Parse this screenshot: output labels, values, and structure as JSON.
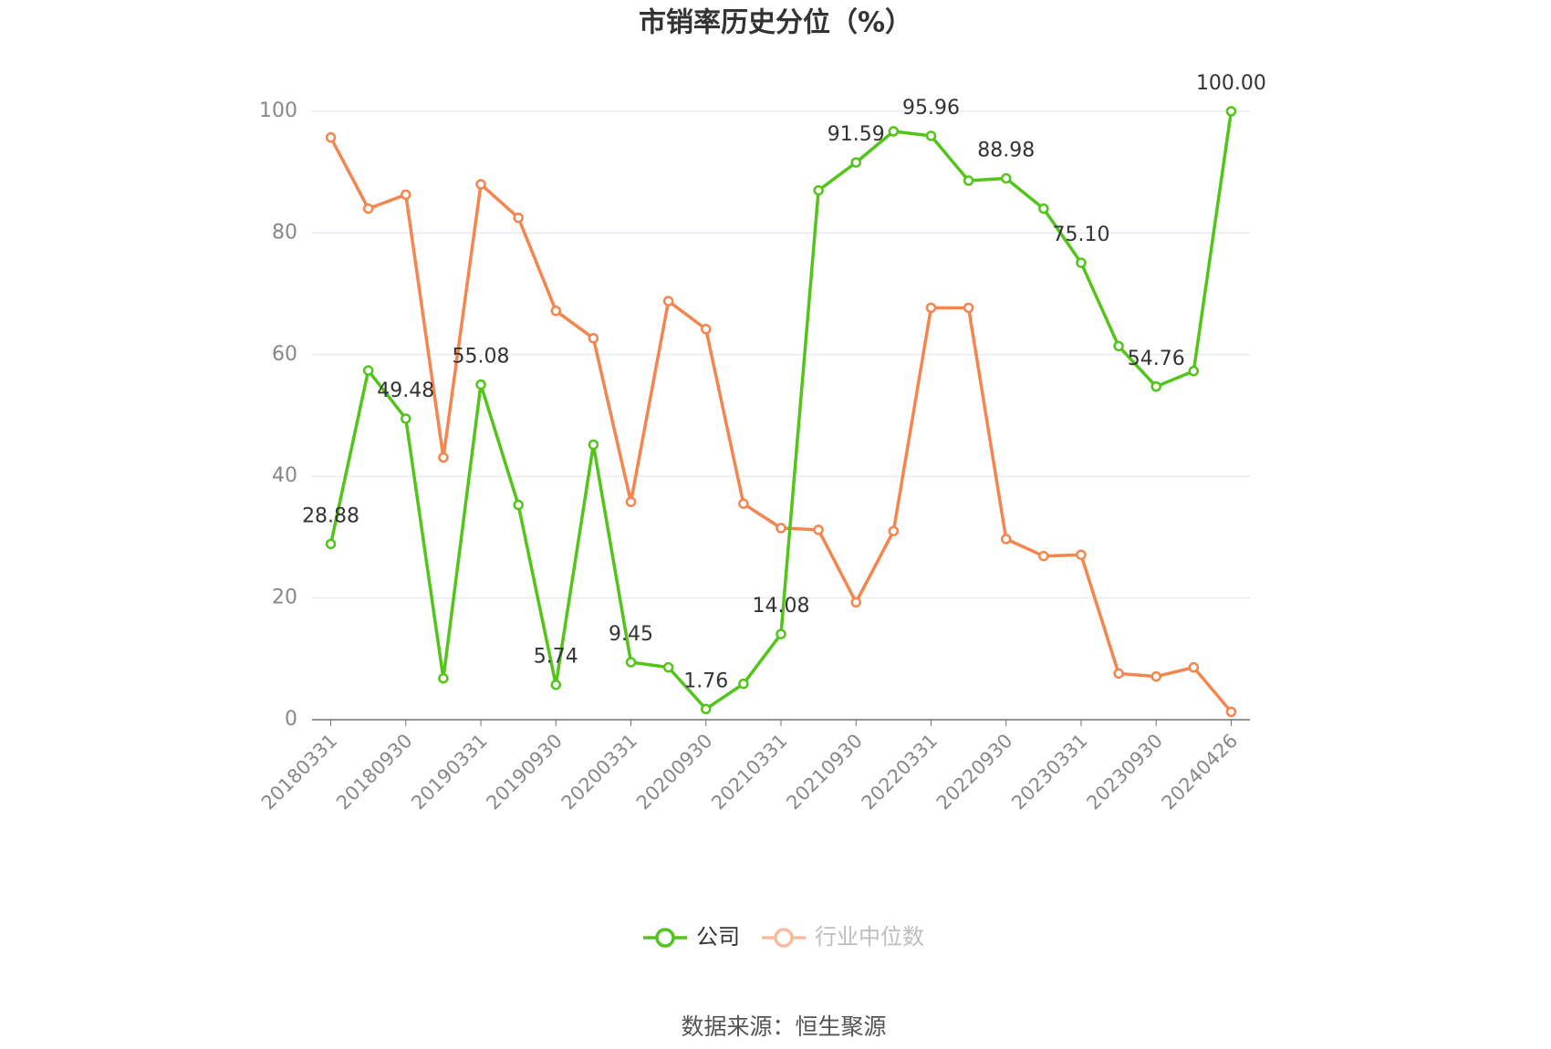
{
  "chart_data": {
    "type": "line",
    "title": "市销率历史分位（%）",
    "categories": [
      "20180331",
      null,
      "20180930",
      null,
      "20190331",
      null,
      "20190930",
      null,
      "20200331",
      null,
      "20200930",
      null,
      "20210331",
      null,
      "20210930",
      null,
      "20220331",
      null,
      "20220930",
      null,
      "20230331",
      null,
      "20230930",
      null,
      "20240426"
    ],
    "series": [
      {
        "name": "公司",
        "color": "#52c41a",
        "values": [
          28.88,
          57.4,
          49.48,
          6.8,
          55.08,
          35.3,
          5.74,
          45.2,
          9.45,
          8.6,
          1.76,
          5.9,
          14.08,
          87.0,
          91.59,
          96.7,
          95.96,
          88.6,
          88.98,
          84.0,
          75.1,
          61.4,
          54.76,
          57.3,
          100
        ],
        "value_labels": [
          "28.88",
          null,
          "49.48",
          null,
          "55.08",
          null,
          "5.74",
          null,
          "9.45",
          null,
          "1.76",
          null,
          "14.08",
          null,
          "91.59",
          null,
          "95.96",
          null,
          "88.98",
          null,
          "75.10",
          null,
          "54.76",
          null,
          "100.00"
        ]
      },
      {
        "name": "行业中位数",
        "color": "#f5854f",
        "values": [
          95.7,
          84.0,
          86.3,
          43.1,
          88.0,
          82.5,
          67.2,
          62.7,
          35.8,
          68.8,
          64.2,
          35.5,
          31.5,
          31.2,
          19.3,
          31.0,
          67.7,
          67.7,
          29.7,
          26.9,
          27.1,
          7.6,
          7.1,
          8.6,
          1.3
        ]
      }
    ],
    "ylim": [
      0,
      100
    ],
    "yticks": [
      0,
      20,
      40,
      60,
      80,
      100
    ],
    "grid": true,
    "source": "数据来源：恒生聚源"
  }
}
